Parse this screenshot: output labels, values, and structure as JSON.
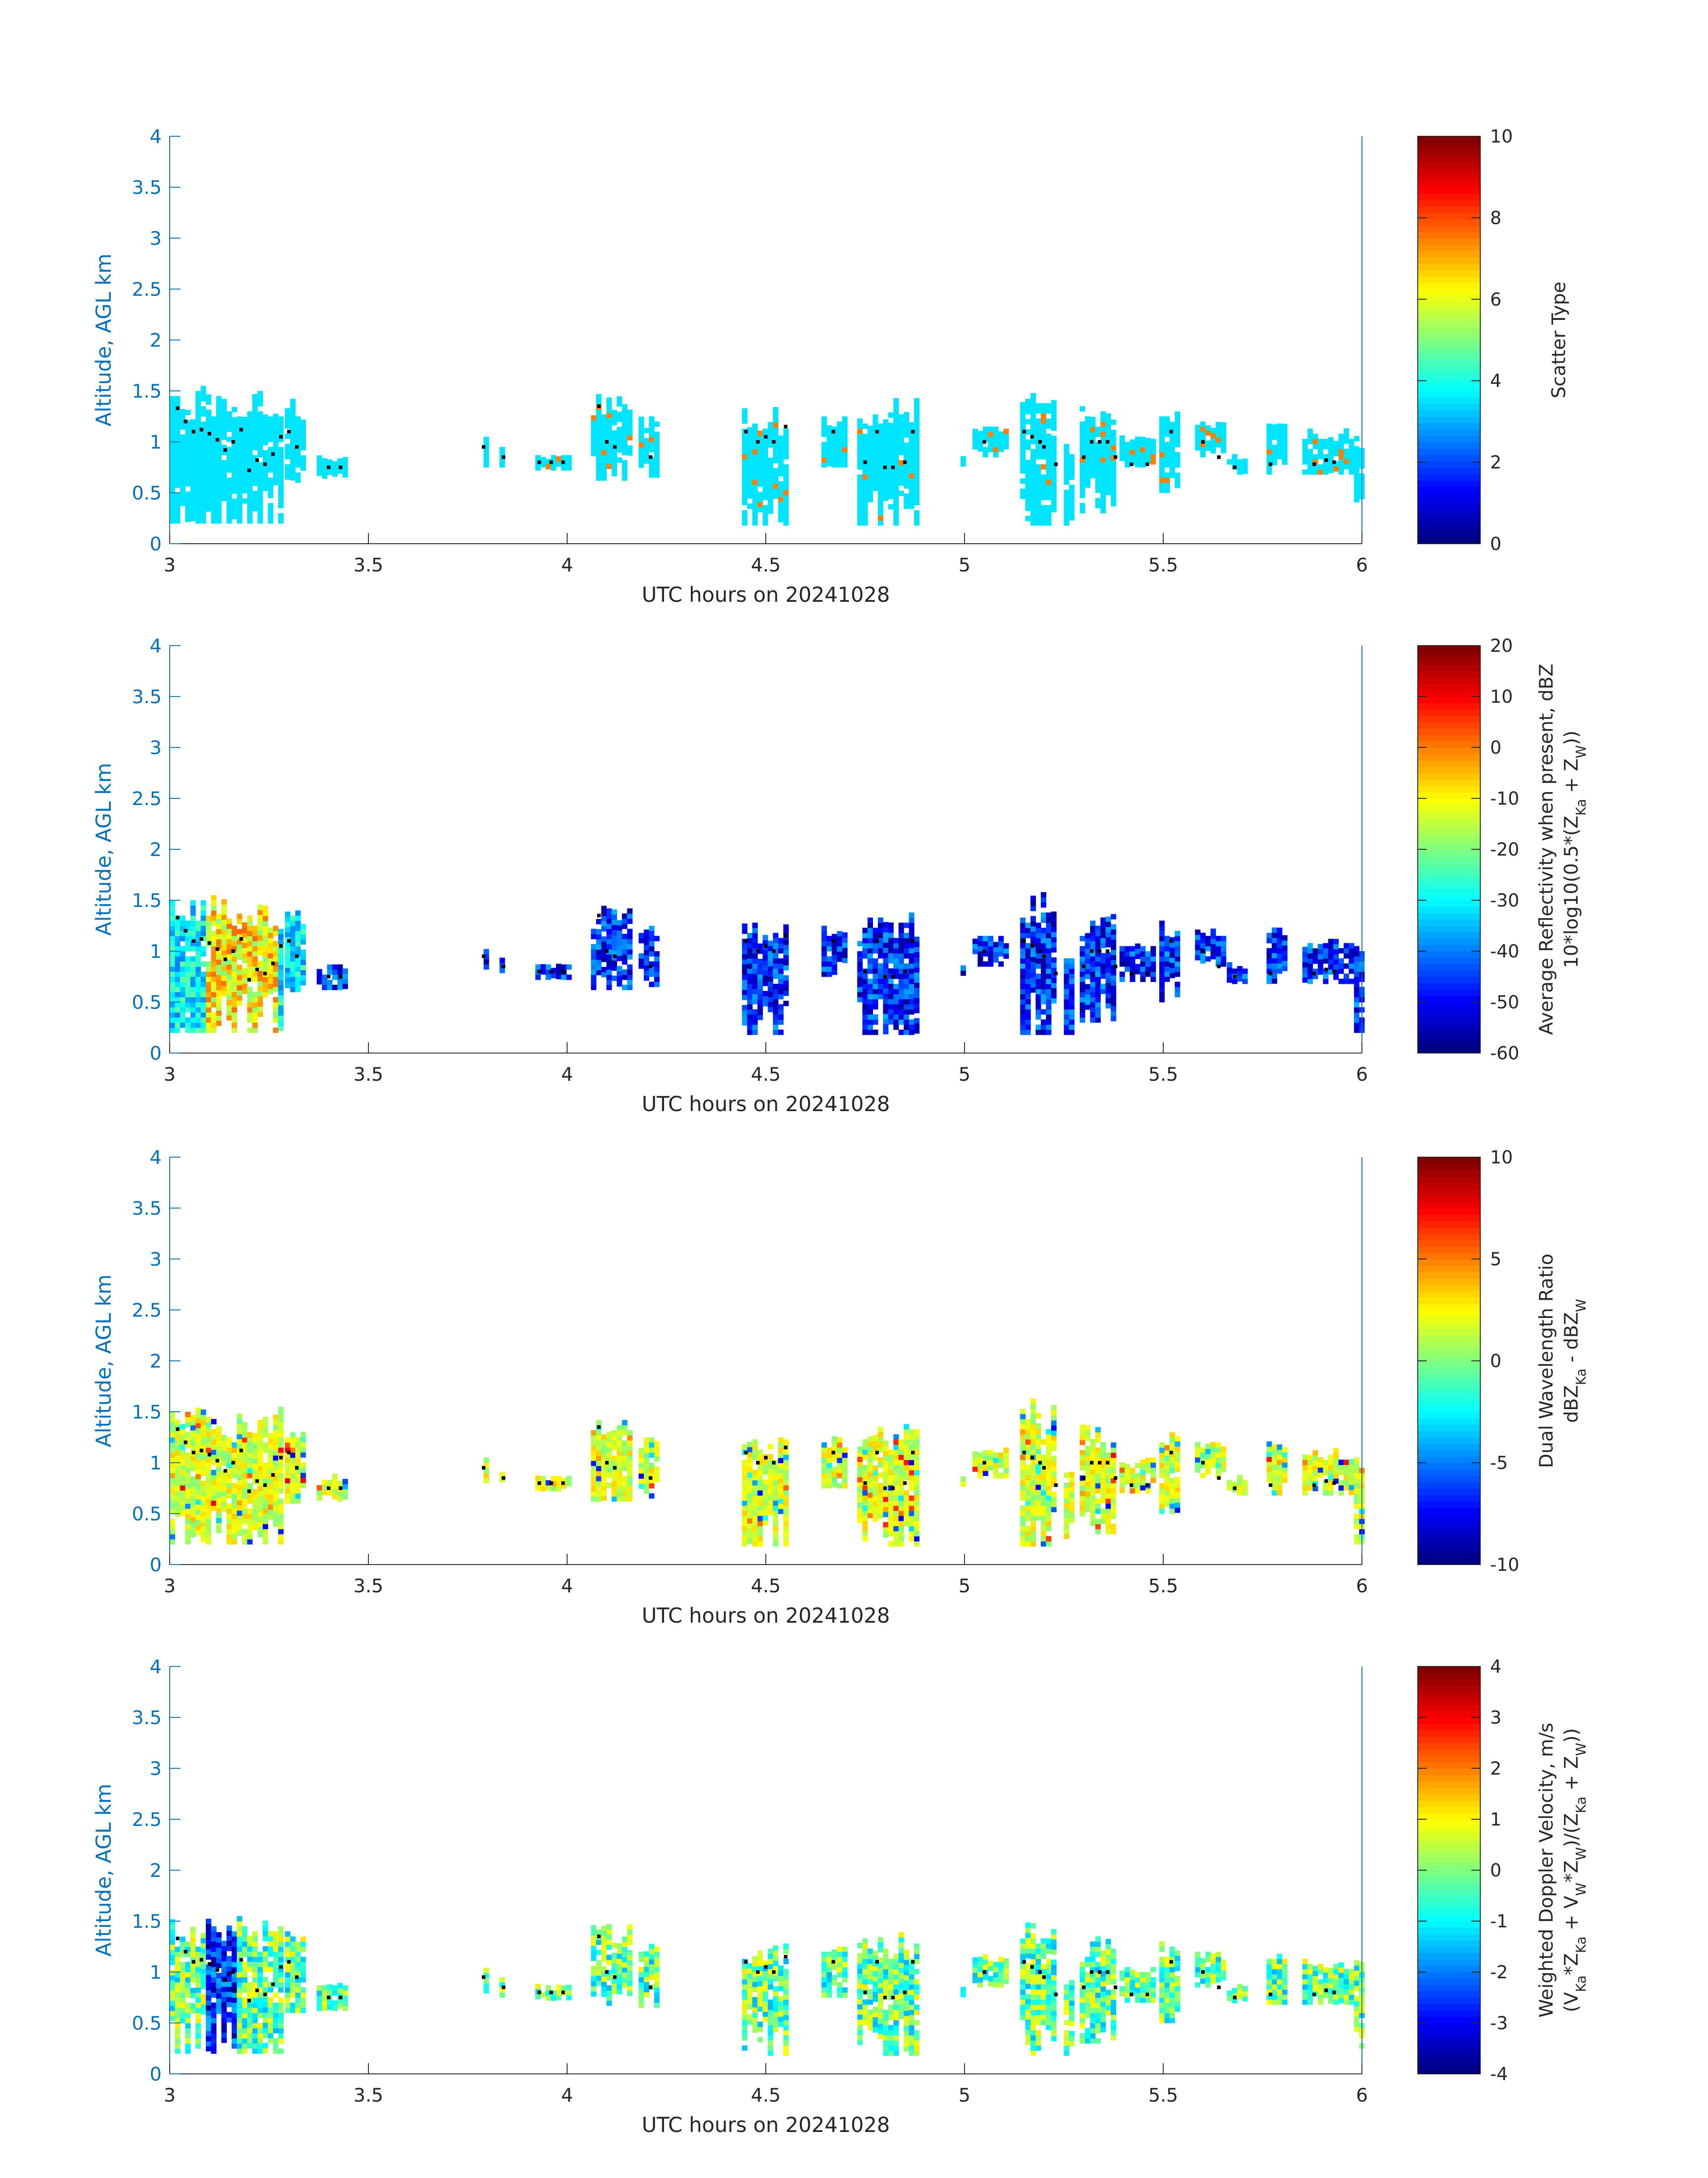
{
  "figure": {
    "background": "#ffffff",
    "axis_color": "#0072bd",
    "text_color": "#262626",
    "tick_label_color": "#0072bd",
    "colormap": "jet"
  },
  "chart_data": [
    {
      "type": "heatmap",
      "xlabel": "UTC hours on 20241028",
      "ylabel": "Altitude, AGL km",
      "xlim": [
        3,
        6
      ],
      "ylim": [
        0,
        4
      ],
      "xticks": [
        "3",
        "3.5",
        "4",
        "4.5",
        "5",
        "5.5",
        "6"
      ],
      "yticks": [
        "0",
        "0.5",
        "1",
        "1.5",
        "2",
        "2.5",
        "3",
        "3.5",
        "4"
      ],
      "colorbar": {
        "label_lines": [
          "Scatter Type"
        ],
        "range": [
          0,
          10
        ],
        "ticks": [
          "0",
          "2",
          "4",
          "6",
          "8",
          "10"
        ]
      },
      "field": "scatter_type",
      "dominant_value": 3.5,
      "secondary_value": 7.5,
      "cloud_layers": [
        {
          "x": [
            3.0,
            3.28
          ],
          "z": [
            0.2,
            1.52
          ]
        },
        {
          "x": [
            3.29,
            3.33
          ],
          "z": [
            0.6,
            1.4
          ]
        },
        {
          "x": [
            3.37,
            3.44
          ],
          "z": [
            0.62,
            0.85
          ]
        },
        {
          "x": [
            3.79,
            3.8
          ],
          "z": [
            0.75,
            1.05
          ]
        },
        {
          "x": [
            3.83,
            3.84
          ],
          "z": [
            0.75,
            0.95
          ]
        },
        {
          "x": [
            3.92,
            4.0
          ],
          "z": [
            0.72,
            0.85
          ]
        },
        {
          "x": [
            4.06,
            4.16
          ],
          "z": [
            0.62,
            1.45
          ]
        },
        {
          "x": [
            4.18,
            4.22
          ],
          "z": [
            0.65,
            1.25
          ]
        },
        {
          "x": [
            4.44,
            4.55
          ],
          "z": [
            0.18,
            1.3
          ]
        },
        {
          "x": [
            4.64,
            4.7
          ],
          "z": [
            0.75,
            1.25
          ]
        },
        {
          "x": [
            4.73,
            4.88
          ],
          "z": [
            0.18,
            1.4
          ]
        },
        {
          "x": [
            4.99,
            5.0
          ],
          "z": [
            0.75,
            0.85
          ]
        },
        {
          "x": [
            5.02,
            5.1
          ],
          "z": [
            0.85,
            1.15
          ]
        },
        {
          "x": [
            5.14,
            5.22
          ],
          "z": [
            0.18,
            1.6
          ]
        },
        {
          "x": [
            5.25,
            5.27
          ],
          "z": [
            0.18,
            1.0
          ]
        },
        {
          "x": [
            5.29,
            5.38
          ],
          "z": [
            0.3,
            1.35
          ]
        },
        {
          "x": [
            5.39,
            5.48
          ],
          "z": [
            0.7,
            1.05
          ]
        },
        {
          "x": [
            5.49,
            5.53
          ],
          "z": [
            0.5,
            1.3
          ]
        },
        {
          "x": [
            5.58,
            5.65
          ],
          "z": [
            0.85,
            1.2
          ]
        },
        {
          "x": [
            5.66,
            5.71
          ],
          "z": [
            0.68,
            0.85
          ]
        },
        {
          "x": [
            5.76,
            5.8
          ],
          "z": [
            0.68,
            1.2
          ]
        },
        {
          "x": [
            5.85,
            5.97
          ],
          "z": [
            0.68,
            1.1
          ]
        },
        {
          "x": [
            5.98,
            6.0
          ],
          "z": [
            0.2,
            1.1
          ]
        }
      ],
      "cloud_base_points": [
        [
          3.02,
          1.33
        ],
        [
          3.04,
          1.2
        ],
        [
          3.06,
          1.1
        ],
        [
          3.08,
          1.12
        ],
        [
          3.1,
          1.08
        ],
        [
          3.12,
          1.02
        ],
        [
          3.14,
          0.92
        ],
        [
          3.16,
          1.0
        ],
        [
          3.18,
          1.12
        ],
        [
          3.2,
          0.72
        ],
        [
          3.22,
          0.82
        ],
        [
          3.24,
          0.78
        ],
        [
          3.26,
          0.88
        ],
        [
          3.28,
          1.05
        ],
        [
          3.3,
          1.1
        ],
        [
          3.32,
          0.95
        ],
        [
          3.4,
          0.75
        ],
        [
          3.43,
          0.75
        ],
        [
          3.79,
          0.95
        ],
        [
          3.84,
          0.85
        ],
        [
          3.93,
          0.8
        ],
        [
          3.96,
          0.8
        ],
        [
          3.99,
          0.8
        ],
        [
          4.08,
          1.35
        ],
        [
          4.1,
          1.0
        ],
        [
          4.12,
          0.95
        ],
        [
          4.21,
          0.85
        ],
        [
          4.45,
          1.1
        ],
        [
          4.48,
          1.0
        ],
        [
          4.5,
          1.05
        ],
        [
          4.52,
          1.0
        ],
        [
          4.55,
          1.15
        ],
        [
          4.67,
          1.1
        ],
        [
          4.75,
          0.8
        ],
        [
          4.78,
          1.1
        ],
        [
          4.8,
          0.75
        ],
        [
          4.82,
          0.75
        ],
        [
          4.85,
          0.8
        ],
        [
          4.87,
          1.1
        ],
        [
          5.05,
          1.0
        ],
        [
          5.15,
          1.1
        ],
        [
          5.17,
          1.05
        ],
        [
          5.19,
          1.0
        ],
        [
          5.2,
          0.95
        ],
        [
          5.23,
          0.78
        ],
        [
          5.3,
          0.85
        ],
        [
          5.32,
          1.0
        ],
        [
          5.34,
          1.0
        ],
        [
          5.36,
          1.0
        ],
        [
          5.38,
          0.85
        ],
        [
          5.42,
          0.78
        ],
        [
          5.46,
          0.78
        ],
        [
          5.52,
          1.1
        ],
        [
          5.6,
          1.0
        ],
        [
          5.64,
          0.85
        ],
        [
          5.68,
          0.75
        ],
        [
          5.77,
          0.78
        ],
        [
          5.88,
          0.78
        ],
        [
          5.91,
          0.82
        ],
        [
          5.93,
          0.8
        ]
      ]
    },
    {
      "type": "heatmap",
      "xlabel": "UTC hours on 20241028",
      "ylabel": "Altitude, AGL km",
      "xlim": [
        3,
        6
      ],
      "ylim": [
        0,
        4
      ],
      "xticks": [
        "3",
        "3.5",
        "4",
        "4.5",
        "5",
        "5.5",
        "6"
      ],
      "yticks": [
        "0",
        "0.5",
        "1",
        "1.5",
        "2",
        "2.5",
        "3",
        "3.5",
        "4"
      ],
      "colorbar": {
        "label_lines": [
          "Average Reflectivity when present, dBZ",
          "10*log10(0.5*(Z_Ka + Z_W))"
        ],
        "range": [
          -60,
          20
        ],
        "ticks": [
          "-60",
          "-50",
          "-40",
          "-30",
          "-20",
          "-10",
          "0",
          "10",
          "20"
        ]
      },
      "field": "reflectivity_dbz",
      "notes": "heavy precip core near 3.1-3.25 h ~ -10 to 0 dBZ; scattered cloud elsewhere -55 to -35 dBZ"
    },
    {
      "type": "heatmap",
      "xlabel": "UTC hours on 20241028",
      "ylabel": "Altitude, AGL km",
      "xlim": [
        3,
        6
      ],
      "ylim": [
        0,
        4
      ],
      "xticks": [
        "3",
        "3.5",
        "4",
        "4.5",
        "5",
        "5.5",
        "6"
      ],
      "yticks": [
        "0",
        "0.5",
        "1",
        "1.5",
        "2",
        "2.5",
        "3",
        "3.5",
        "4"
      ],
      "colorbar": {
        "label_lines": [
          "Dual Wavelength Ratio",
          "dBZ_Ka - dBZ_W"
        ],
        "range": [
          -10,
          10
        ],
        "ticks": [
          "-10",
          "-5",
          "0",
          "5",
          "10"
        ]
      },
      "field": "dual_wavelength_ratio",
      "notes": "mostly 0 to 3 dB (yellow) with occasional outliers"
    },
    {
      "type": "heatmap",
      "xlabel": "UTC hours on 20241028",
      "ylabel": "Altitude, AGL km",
      "xlim": [
        3,
        6
      ],
      "ylim": [
        0,
        4
      ],
      "xticks": [
        "3",
        "3.5",
        "4",
        "4.5",
        "5",
        "5.5",
        "6"
      ],
      "yticks": [
        "0",
        "0.5",
        "1",
        "1.5",
        "2",
        "2.5",
        "3",
        "3.5",
        "4"
      ],
      "colorbar": {
        "label_lines": [
          "Weighted Doppler Velocity, m/s",
          "(V_Ka*Z_Ka + V_W*Z_W)/(Z_Ka + Z_W))"
        ],
        "range": [
          -4,
          4
        ],
        "ticks": [
          "-4",
          "-3",
          "-2",
          "-1",
          "0",
          "1",
          "2",
          "3",
          "4"
        ]
      },
      "field": "weighted_doppler_velocity",
      "notes": "downward motion -3 to -4 m/s in precip core near 3.1-3.15 h; mostly -1 to 1 m/s elsewhere"
    }
  ]
}
